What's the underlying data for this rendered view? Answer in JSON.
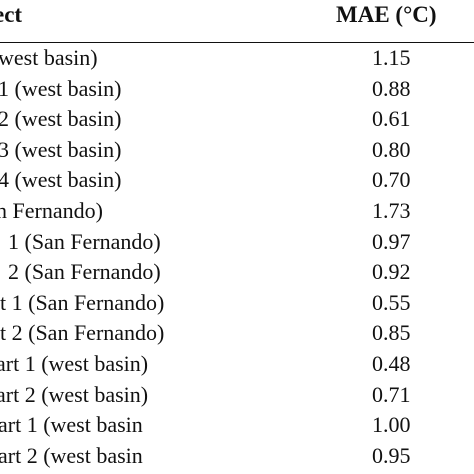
{
  "header": {
    "left": "ect",
    "right": "MAE (°C)"
  },
  "rows": [
    {
      "label": "west basin)",
      "mae": "1.15"
    },
    {
      "label": "1 (west basin)",
      "mae": "0.88"
    },
    {
      "label": "2 (west basin)",
      "mae": "0.61"
    },
    {
      "label": "3 (west basin)",
      "mae": "0.80"
    },
    {
      "label": "4 (west basin)",
      "mae": "0.70"
    },
    {
      "label": "n Fernando)",
      "mae": "1.73"
    },
    {
      "label": "1 (San Fernando)",
      "mae": "0.97"
    },
    {
      "label": "2 (San Fernando)",
      "mae": "0.92"
    },
    {
      "label": "t 1 (San Fernando)",
      "mae": "0.55"
    },
    {
      "label": "t 2 (San Fernando)",
      "mae": "0.85"
    },
    {
      "label": "art 1 (west basin)",
      "mae": "0.48"
    },
    {
      "label": "art 2 (west basin)",
      "mae": "0.71"
    },
    {
      "label": "art 1 (west basin",
      "mae": "1.00"
    },
    {
      "label": "art 2 (west basin",
      "mae": "0.95"
    }
  ]
}
